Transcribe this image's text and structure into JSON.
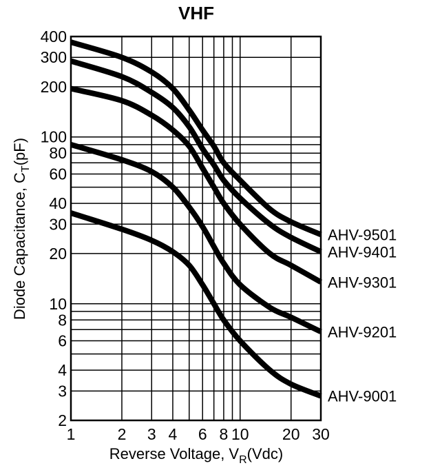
{
  "chart_data": {
    "type": "line",
    "title": "VHF",
    "xlabel": {
      "main": "Reverse Voltage, V",
      "sub": "R",
      "tail": "(Vdc)"
    },
    "ylabel": {
      "main": "Diode Capacitance, C",
      "sub": "T",
      "tail": "(pF)"
    },
    "x_scale": "log",
    "y_scale": "log",
    "xlim": [
      1,
      30
    ],
    "ylim": [
      2,
      400
    ],
    "grid": true,
    "x_ticks": [
      1,
      2,
      3,
      4,
      6,
      8,
      10,
      20,
      30
    ],
    "x_tick_labels": [
      "1",
      "2",
      "3",
      "4",
      "6",
      "8",
      "10",
      "20",
      "30"
    ],
    "x_minor_grid": [
      5,
      7,
      9
    ],
    "y_ticks": [
      2,
      3,
      4,
      6,
      8,
      10,
      20,
      30,
      40,
      60,
      80,
      100,
      200,
      300,
      400
    ],
    "y_tick_labels": [
      "2",
      "3",
      "4",
      "6",
      "8",
      "10",
      "20",
      "30",
      "40",
      "60",
      "80",
      "100",
      "200",
      "300",
      "400"
    ],
    "y_minor_grid": [
      5,
      7,
      9,
      50,
      70,
      90
    ],
    "series": [
      {
        "name": "AHV-9501",
        "x": [
          1,
          2,
          3,
          4,
          5,
          6,
          7,
          8,
          10,
          15,
          20,
          30
        ],
        "values": [
          370,
          300,
          245,
          195,
          145,
          110,
          88,
          70,
          55,
          37,
          31,
          26
        ]
      },
      {
        "name": "AHV-9401",
        "x": [
          1,
          2,
          3,
          4,
          5,
          6,
          7,
          8,
          10,
          15,
          20,
          30
        ],
        "values": [
          285,
          230,
          185,
          150,
          115,
          85,
          68,
          55,
          43,
          30,
          25,
          20.5
        ]
      },
      {
        "name": "AHV-9301",
        "x": [
          1,
          2,
          3,
          4,
          5,
          6,
          7,
          8,
          10,
          15,
          20,
          30
        ],
        "values": [
          195,
          165,
          135,
          110,
          88,
          65,
          50,
          40,
          30,
          20,
          17,
          13.5
        ]
      },
      {
        "name": "AHV-9201",
        "x": [
          1,
          2,
          3,
          4,
          5,
          6,
          7,
          8,
          10,
          15,
          20,
          30
        ],
        "values": [
          90,
          73,
          62,
          50,
          38,
          29,
          22,
          17.5,
          13,
          9.5,
          8.3,
          6.8
        ]
      },
      {
        "name": "AHV-9001",
        "x": [
          1,
          2,
          3,
          4,
          5,
          6,
          7,
          8,
          10,
          15,
          20,
          30
        ],
        "values": [
          35,
          28,
          24,
          20.5,
          17,
          13,
          10,
          8,
          6,
          4,
          3.3,
          2.8
        ]
      }
    ]
  }
}
